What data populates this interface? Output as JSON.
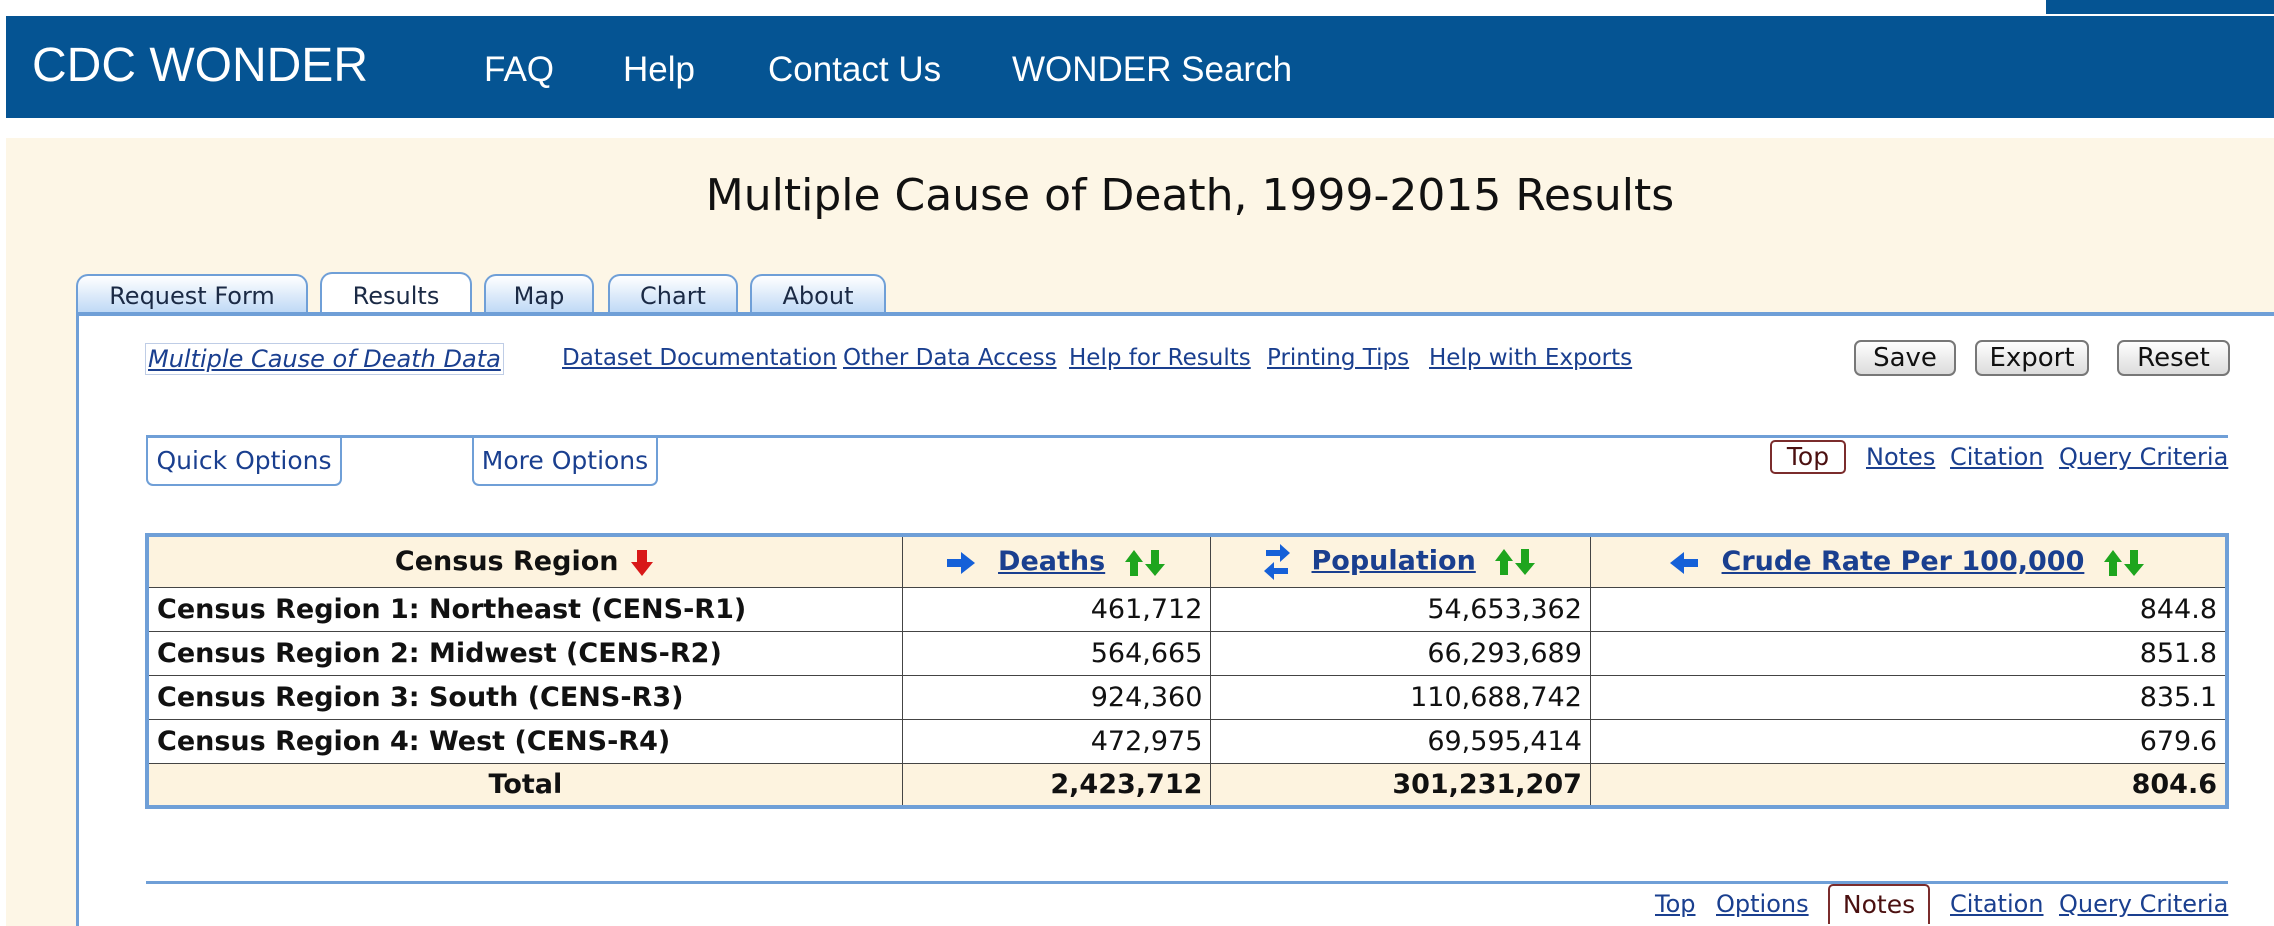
{
  "header": {
    "brand": "CDC WONDER",
    "nav": [
      "FAQ",
      "Help",
      "Contact Us",
      "WONDER Search"
    ]
  },
  "page_title": "Multiple Cause of Death, 1999-2015 Results",
  "tabs": [
    {
      "label": "Request Form",
      "active": false
    },
    {
      "label": "Results",
      "active": true
    },
    {
      "label": "Map",
      "active": false
    },
    {
      "label": "Chart",
      "active": false
    },
    {
      "label": "About",
      "active": false
    }
  ],
  "links_bar": {
    "dataset_link": "Multiple Cause of Death Data",
    "links": [
      "Dataset Documentation",
      "Other Data Access",
      "Help for Results",
      "Printing Tips",
      "Help with Exports"
    ]
  },
  "actions": {
    "save": "Save",
    "export": "Export",
    "reset": "Reset"
  },
  "options": {
    "quick": "Quick Options",
    "more": "More Options"
  },
  "section_nav_top": {
    "top": "Top",
    "notes": "Notes",
    "citation": "Citation",
    "query": "Query Criteria"
  },
  "section_nav_bottom": {
    "top": "Top",
    "options": "Options",
    "notes": "Notes",
    "citation": "Citation",
    "query": "Query Criteria"
  },
  "table": {
    "headers": {
      "region": "Census Region",
      "deaths": "Deaths",
      "population": "Population",
      "rate": "Crude Rate Per 100,000"
    },
    "rows": [
      {
        "region": "Census Region 1: Northeast (CENS-R1)",
        "deaths": "461,712",
        "population": "54,653,362",
        "rate": "844.8"
      },
      {
        "region": "Census Region 2: Midwest (CENS-R2)",
        "deaths": "564,665",
        "population": "66,293,689",
        "rate": "851.8"
      },
      {
        "region": "Census Region 3: South (CENS-R3)",
        "deaths": "924,360",
        "population": "110,688,742",
        "rate": "835.1"
      },
      {
        "region": "Census Region 4: West (CENS-R4)",
        "deaths": "472,975",
        "population": "69,595,414",
        "rate": "679.6"
      }
    ],
    "total": {
      "label": "Total",
      "deaths": "2,423,712",
      "population": "301,231,207",
      "rate": "804.6"
    }
  },
  "colors": {
    "header_bg": "#055493",
    "band_bg": "#fdf6e6",
    "accent_blue": "#6f9fd7",
    "link": "#1a3f8f",
    "sort_down_red": "#d81818",
    "sort_green": "#1ea51e"
  },
  "icons": {
    "sort": "sort-down-red-arrow-icon",
    "move_right": "arrow-right-blue-icon",
    "swap": "swap-blue-arrows-icon",
    "move_left": "arrow-left-blue-icon",
    "sort_toggle": "sort-up-down-green-arrows-icon"
  }
}
